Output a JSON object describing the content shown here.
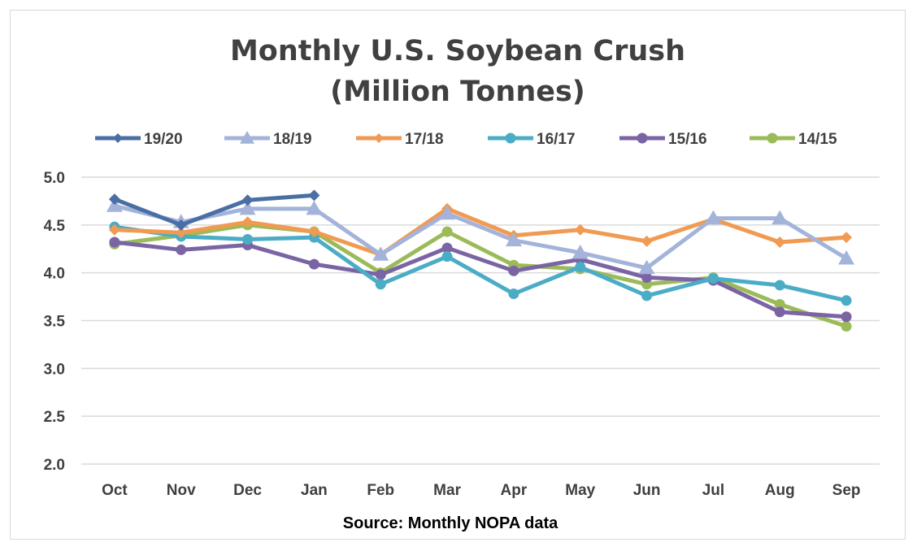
{
  "chart_data": {
    "type": "line",
    "title": "Monthly U.S. Soybean Crush",
    "subtitle": "(Million Tonnes)",
    "source": "Source: Monthly NOPA data",
    "categories": [
      "Oct",
      "Nov",
      "Dec",
      "Jan",
      "Feb",
      "Mar",
      "Apr",
      "May",
      "Jun",
      "Jul",
      "Aug",
      "Sep"
    ],
    "ylim": [
      2.0,
      5.0
    ],
    "yticks": [
      "5.0",
      "4.5",
      "4.0",
      "3.5",
      "3.0",
      "2.5",
      "2.0"
    ],
    "grid": true,
    "legend_position": "top",
    "series": [
      {
        "name": "19/20",
        "color": "#4a6fa5",
        "marker": "diamond",
        "values": [
          4.77,
          4.5,
          4.76,
          4.81,
          null,
          null,
          null,
          null,
          null,
          null,
          null,
          null
        ]
      },
      {
        "name": "18/19",
        "color": "#a3b3d9",
        "marker": "triangle",
        "values": [
          4.7,
          4.53,
          4.67,
          4.67,
          4.19,
          4.62,
          4.34,
          4.21,
          4.05,
          4.57,
          4.57,
          4.15
        ]
      },
      {
        "name": "17/18",
        "color": "#f09a52",
        "marker": "diamond",
        "values": [
          4.45,
          4.42,
          4.53,
          4.43,
          4.19,
          4.67,
          4.39,
          4.45,
          4.33,
          4.56,
          4.32,
          4.37
        ]
      },
      {
        "name": "16/17",
        "color": "#4bacc6",
        "marker": "circle",
        "values": [
          4.48,
          4.38,
          4.35,
          4.37,
          3.88,
          4.17,
          3.78,
          4.06,
          3.76,
          3.94,
          3.87,
          3.71
        ]
      },
      {
        "name": "15/16",
        "color": "#7b64a4",
        "marker": "circle",
        "values": [
          4.32,
          4.24,
          4.29,
          4.09,
          3.98,
          4.26,
          4.02,
          4.14,
          3.95,
          3.92,
          3.59,
          3.54
        ]
      },
      {
        "name": "14/15",
        "color": "#9bbb59",
        "marker": "circle",
        "values": [
          4.3,
          4.39,
          4.5,
          4.43,
          4.0,
          4.43,
          4.08,
          4.04,
          3.88,
          3.95,
          3.67,
          3.44
        ]
      }
    ]
  }
}
